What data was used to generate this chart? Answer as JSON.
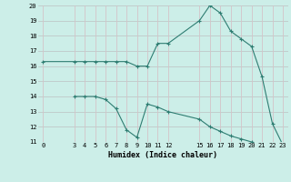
{
  "line1_x": [
    0,
    3,
    4,
    5,
    6,
    7,
    8,
    9,
    10,
    11,
    12,
    15,
    16,
    17,
    18,
    19,
    20,
    21,
    22,
    23
  ],
  "line1_y": [
    16.3,
    16.3,
    16.3,
    16.3,
    16.3,
    16.3,
    16.3,
    16.0,
    16.0,
    17.5,
    17.5,
    19.0,
    20.0,
    19.5,
    18.3,
    17.8,
    17.3,
    15.3,
    12.2,
    10.8
  ],
  "line2_x": [
    3,
    4,
    5,
    6,
    7,
    8,
    9,
    10,
    11,
    12,
    15,
    16,
    17,
    18,
    19,
    20,
    21,
    22,
    23
  ],
  "line2_y": [
    14.0,
    14.0,
    14.0,
    13.8,
    13.2,
    11.8,
    11.3,
    13.5,
    13.3,
    13.0,
    12.5,
    12.0,
    11.7,
    11.4,
    11.2,
    11.0,
    10.85,
    10.85,
    10.85
  ],
  "line_color": "#2e7d72",
  "bg_color": "#cceee8",
  "grid_color_h": "#c0c8c8",
  "grid_color_v": "#d4c4c8",
  "xlabel": "Humidex (Indice chaleur)",
  "ylim": [
    11,
    20
  ],
  "xlim": [
    -0.5,
    23.5
  ],
  "yticks": [
    11,
    12,
    13,
    14,
    15,
    16,
    17,
    18,
    19,
    20
  ],
  "xticks": [
    0,
    3,
    4,
    5,
    6,
    7,
    8,
    9,
    10,
    11,
    12,
    15,
    16,
    17,
    18,
    19,
    20,
    21,
    22,
    23
  ]
}
